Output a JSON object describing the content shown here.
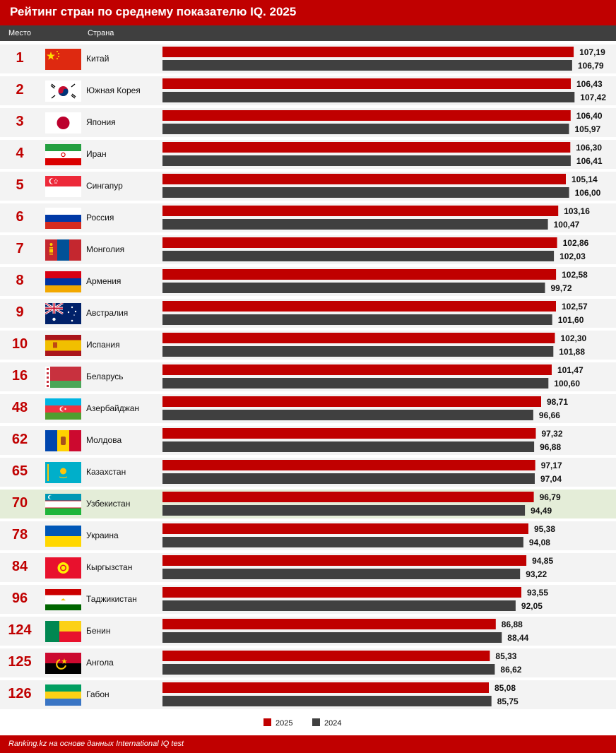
{
  "title": "Рейтинг стран по среднему показателю IQ. 2025",
  "header": {
    "rank": "Место",
    "country": "Страна"
  },
  "source": "Ranking.kz на основе данных International IQ test",
  "colors": {
    "brand": "#c00000",
    "series2024": "#404040",
    "highlight": "#e4edd8"
  },
  "chart_data": {
    "type": "bar",
    "orientation": "horizontal",
    "title": "Рейтинг стран по среднему показателю IQ. 2025",
    "legend": "bottom-center",
    "xlim": [
      0,
      110
    ],
    "categories": [
      "Китай",
      "Южная Корея",
      "Япония",
      "Иран",
      "Сингапур",
      "Россия",
      "Монголия",
      "Армения",
      "Австралия",
      "Испания",
      "Беларусь",
      "Азербайджан",
      "Молдова",
      "Казахстан",
      "Узбекистан",
      "Украина",
      "Кыргызстан",
      "Таджикистан",
      "Бенин",
      "Ангола",
      "Габон"
    ],
    "ranks": [
      "1",
      "2",
      "3",
      "4",
      "5",
      "6",
      "7",
      "8",
      "9",
      "10",
      "16",
      "48",
      "62",
      "65",
      "70",
      "78",
      "84",
      "96",
      "124",
      "125",
      "126"
    ],
    "flags": [
      "china-flag-icon",
      "south-korea-flag-icon",
      "japan-flag-icon",
      "iran-flag-icon",
      "singapore-flag-icon",
      "russia-flag-icon",
      "mongolia-flag-icon",
      "armenia-flag-icon",
      "australia-flag-icon",
      "spain-flag-icon",
      "belarus-flag-icon",
      "azerbaijan-flag-icon",
      "moldova-flag-icon",
      "kazakhstan-flag-icon",
      "uzbekistan-flag-icon",
      "ukraine-flag-icon",
      "kyrgyzstan-flag-icon",
      "tajikistan-flag-icon",
      "benin-flag-icon",
      "angola-flag-icon",
      "gabon-flag-icon"
    ],
    "highlight_category": "Узбекистан",
    "series": [
      {
        "name": "2025",
        "color": "#c00000",
        "values": [
          107.19,
          106.43,
          106.4,
          106.3,
          105.14,
          103.16,
          102.86,
          102.58,
          102.57,
          102.3,
          101.47,
          98.71,
          97.32,
          97.17,
          96.79,
          95.38,
          94.85,
          93.55,
          86.88,
          85.33,
          85.08
        ],
        "labels": [
          "107,19",
          "106,43",
          "106,40",
          "106,30",
          "105,14",
          "103,16",
          "102,86",
          "102,58",
          "102,57",
          "102,30",
          "101,47",
          "98,71",
          "97,32",
          "97,17",
          "96,79",
          "95,38",
          "94,85",
          "93,55",
          "86,88",
          "85,33",
          "85,08"
        ]
      },
      {
        "name": "2024",
        "color": "#404040",
        "values": [
          106.79,
          107.42,
          105.97,
          106.41,
          106.0,
          100.47,
          102.03,
          99.72,
          101.6,
          101.88,
          100.6,
          96.66,
          96.88,
          97.04,
          94.49,
          94.08,
          93.22,
          92.05,
          88.44,
          86.62,
          85.75
        ],
        "labels": [
          "106,79",
          "107,42",
          "105,97",
          "106,41",
          "106,00",
          "100,47",
          "102,03",
          "99,72",
          "101,60",
          "101,88",
          "100,60",
          "96,66",
          "96,88",
          "97,04",
          "94,49",
          "94,08",
          "93,22",
          "92,05",
          "88,44",
          "86,62",
          "85,75"
        ]
      }
    ]
  }
}
